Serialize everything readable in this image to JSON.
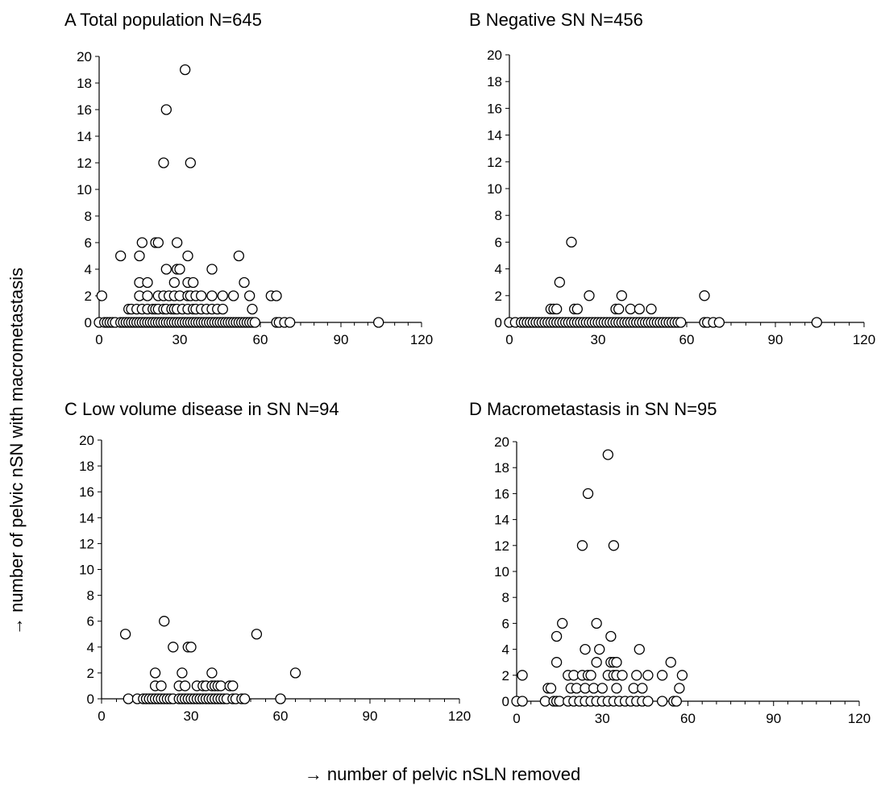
{
  "ylabel": "→ number of pelvic nSN with macrometastasis",
  "xlabel": "→ number of pelvic nSLN removed",
  "chart_data": [
    {
      "type": "scatter",
      "title": "A Total population N=645",
      "xlim": [
        0,
        120
      ],
      "ylim": [
        0,
        20
      ],
      "xticks": [
        "0",
        "30",
        "60",
        "90",
        "120"
      ],
      "yticks": [
        "0",
        "2",
        "4",
        "6",
        "8",
        "10",
        "12",
        "14",
        "16",
        "18",
        "20"
      ],
      "points": [
        [
          0,
          0
        ],
        [
          2,
          0
        ],
        [
          3,
          0
        ],
        [
          4,
          0
        ],
        [
          5,
          0
        ],
        [
          6,
          0
        ],
        [
          8,
          0
        ],
        [
          9,
          0
        ],
        [
          10,
          0
        ],
        [
          11,
          0
        ],
        [
          12,
          0
        ],
        [
          13,
          0
        ],
        [
          14,
          0
        ],
        [
          15,
          0
        ],
        [
          16,
          0
        ],
        [
          17,
          0
        ],
        [
          18,
          0
        ],
        [
          19,
          0
        ],
        [
          20,
          0
        ],
        [
          21,
          0
        ],
        [
          22,
          0
        ],
        [
          23,
          0
        ],
        [
          24,
          0
        ],
        [
          25,
          0
        ],
        [
          26,
          0
        ],
        [
          27,
          0
        ],
        [
          28,
          0
        ],
        [
          29,
          0
        ],
        [
          30,
          0
        ],
        [
          31,
          0
        ],
        [
          32,
          0
        ],
        [
          33,
          0
        ],
        [
          34,
          0
        ],
        [
          35,
          0
        ],
        [
          36,
          0
        ],
        [
          37,
          0
        ],
        [
          38,
          0
        ],
        [
          39,
          0
        ],
        [
          40,
          0
        ],
        [
          41,
          0
        ],
        [
          42,
          0
        ],
        [
          43,
          0
        ],
        [
          44,
          0
        ],
        [
          45,
          0
        ],
        [
          46,
          0
        ],
        [
          47,
          0
        ],
        [
          48,
          0
        ],
        [
          49,
          0
        ],
        [
          50,
          0
        ],
        [
          51,
          0
        ],
        [
          52,
          0
        ],
        [
          53,
          0
        ],
        [
          54,
          0
        ],
        [
          55,
          0
        ],
        [
          56,
          0
        ],
        [
          57,
          0
        ],
        [
          58,
          0
        ],
        [
          66,
          0
        ],
        [
          67,
          0
        ],
        [
          69,
          0
        ],
        [
          71,
          0
        ],
        [
          104,
          0
        ],
        [
          11,
          1
        ],
        [
          12,
          1
        ],
        [
          14,
          1
        ],
        [
          16,
          1
        ],
        [
          18,
          1
        ],
        [
          20,
          1
        ],
        [
          21,
          1
        ],
        [
          22,
          1
        ],
        [
          24,
          1
        ],
        [
          25,
          1
        ],
        [
          27,
          1
        ],
        [
          28,
          1
        ],
        [
          29,
          1
        ],
        [
          31,
          1
        ],
        [
          33,
          1
        ],
        [
          35,
          1
        ],
        [
          36,
          1
        ],
        [
          38,
          1
        ],
        [
          40,
          1
        ],
        [
          42,
          1
        ],
        [
          44,
          1
        ],
        [
          46,
          1
        ],
        [
          57,
          1
        ],
        [
          1,
          2
        ],
        [
          15,
          2
        ],
        [
          18,
          2
        ],
        [
          22,
          2
        ],
        [
          24,
          2
        ],
        [
          26,
          2
        ],
        [
          28,
          2
        ],
        [
          30,
          2
        ],
        [
          33,
          2
        ],
        [
          34,
          2
        ],
        [
          36,
          2
        ],
        [
          38,
          2
        ],
        [
          42,
          2
        ],
        [
          46,
          2
        ],
        [
          50,
          2
        ],
        [
          56,
          2
        ],
        [
          64,
          2
        ],
        [
          66,
          2
        ],
        [
          15,
          3
        ],
        [
          18,
          3
        ],
        [
          28,
          3
        ],
        [
          33,
          3
        ],
        [
          35,
          3
        ],
        [
          54,
          3
        ],
        [
          25,
          4
        ],
        [
          29,
          4
        ],
        [
          30,
          4
        ],
        [
          42,
          4
        ],
        [
          8,
          5
        ],
        [
          15,
          5
        ],
        [
          33,
          5
        ],
        [
          52,
          5
        ],
        [
          16,
          6
        ],
        [
          21,
          6
        ],
        [
          22,
          6
        ],
        [
          29,
          6
        ],
        [
          24,
          12
        ],
        [
          34,
          12
        ],
        [
          25,
          16
        ],
        [
          32,
          19
        ]
      ]
    },
    {
      "type": "scatter",
      "title": "B Negative SN N=456",
      "xlim": [
        0,
        120
      ],
      "ylim": [
        0,
        20
      ],
      "xticks": [
        "0",
        "30",
        "60",
        "90",
        "120"
      ],
      "yticks": [
        "0",
        "2",
        "4",
        "6",
        "8",
        "10",
        "12",
        "14",
        "16",
        "18",
        "20"
      ],
      "points": [
        [
          0,
          0
        ],
        [
          2,
          0
        ],
        [
          4,
          0
        ],
        [
          5,
          0
        ],
        [
          6,
          0
        ],
        [
          7,
          0
        ],
        [
          8,
          0
        ],
        [
          9,
          0
        ],
        [
          10,
          0
        ],
        [
          11,
          0
        ],
        [
          12,
          0
        ],
        [
          13,
          0
        ],
        [
          14,
          0
        ],
        [
          15,
          0
        ],
        [
          16,
          0
        ],
        [
          17,
          0
        ],
        [
          18,
          0
        ],
        [
          19,
          0
        ],
        [
          20,
          0
        ],
        [
          21,
          0
        ],
        [
          22,
          0
        ],
        [
          23,
          0
        ],
        [
          24,
          0
        ],
        [
          25,
          0
        ],
        [
          26,
          0
        ],
        [
          27,
          0
        ],
        [
          28,
          0
        ],
        [
          29,
          0
        ],
        [
          30,
          0
        ],
        [
          31,
          0
        ],
        [
          32,
          0
        ],
        [
          33,
          0
        ],
        [
          34,
          0
        ],
        [
          35,
          0
        ],
        [
          36,
          0
        ],
        [
          37,
          0
        ],
        [
          38,
          0
        ],
        [
          39,
          0
        ],
        [
          40,
          0
        ],
        [
          41,
          0
        ],
        [
          42,
          0
        ],
        [
          43,
          0
        ],
        [
          44,
          0
        ],
        [
          45,
          0
        ],
        [
          46,
          0
        ],
        [
          47,
          0
        ],
        [
          48,
          0
        ],
        [
          49,
          0
        ],
        [
          50,
          0
        ],
        [
          51,
          0
        ],
        [
          52,
          0
        ],
        [
          53,
          0
        ],
        [
          54,
          0
        ],
        [
          55,
          0
        ],
        [
          56,
          0
        ],
        [
          57,
          0
        ],
        [
          58,
          0
        ],
        [
          66,
          0
        ],
        [
          67,
          0
        ],
        [
          69,
          0
        ],
        [
          71,
          0
        ],
        [
          104,
          0
        ],
        [
          14,
          1
        ],
        [
          15,
          1
        ],
        [
          16,
          1
        ],
        [
          22,
          1
        ],
        [
          23,
          1
        ],
        [
          36,
          1
        ],
        [
          37,
          1
        ],
        [
          41,
          1
        ],
        [
          44,
          1
        ],
        [
          48,
          1
        ],
        [
          27,
          2
        ],
        [
          38,
          2
        ],
        [
          66,
          2
        ],
        [
          17,
          3
        ],
        [
          21,
          6
        ]
      ]
    },
    {
      "type": "scatter",
      "title": "C Low volume disease in SN N=94",
      "xlim": [
        0,
        120
      ],
      "ylim": [
        0,
        20
      ],
      "xticks": [
        "0",
        "30",
        "60",
        "90",
        "120"
      ],
      "yticks": [
        "0",
        "2",
        "4",
        "6",
        "8",
        "10",
        "12",
        "14",
        "16",
        "18",
        "20"
      ],
      "points": [
        [
          9,
          0
        ],
        [
          12,
          0
        ],
        [
          14,
          0
        ],
        [
          15,
          0
        ],
        [
          16,
          0
        ],
        [
          17,
          0
        ],
        [
          18,
          0
        ],
        [
          19,
          0
        ],
        [
          20,
          0
        ],
        [
          21,
          0
        ],
        [
          22,
          0
        ],
        [
          23,
          0
        ],
        [
          24,
          0
        ],
        [
          26,
          0
        ],
        [
          27,
          0
        ],
        [
          28,
          0
        ],
        [
          29,
          0
        ],
        [
          30,
          0
        ],
        [
          31,
          0
        ],
        [
          32,
          0
        ],
        [
          33,
          0
        ],
        [
          34,
          0
        ],
        [
          35,
          0
        ],
        [
          36,
          0
        ],
        [
          37,
          0
        ],
        [
          38,
          0
        ],
        [
          39,
          0
        ],
        [
          40,
          0
        ],
        [
          41,
          0
        ],
        [
          42,
          0
        ],
        [
          44,
          0
        ],
        [
          45,
          0
        ],
        [
          47,
          0
        ],
        [
          48,
          0
        ],
        [
          60,
          0
        ],
        [
          18,
          1
        ],
        [
          20,
          1
        ],
        [
          26,
          1
        ],
        [
          28,
          1
        ],
        [
          32,
          1
        ],
        [
          34,
          1
        ],
        [
          35,
          1
        ],
        [
          37,
          1
        ],
        [
          38,
          1
        ],
        [
          39,
          1
        ],
        [
          40,
          1
        ],
        [
          43,
          1
        ],
        [
          44,
          1
        ],
        [
          18,
          2
        ],
        [
          27,
          2
        ],
        [
          37,
          2
        ],
        [
          65,
          2
        ],
        [
          24,
          4
        ],
        [
          29,
          4
        ],
        [
          30,
          4
        ],
        [
          8,
          5
        ],
        [
          52,
          5
        ],
        [
          21,
          6
        ]
      ]
    },
    {
      "type": "scatter",
      "title": "D Macrometastasis in SN N=95",
      "xlim": [
        0,
        120
      ],
      "ylim": [
        0,
        20
      ],
      "xticks": [
        "0",
        "30",
        "60",
        "90",
        "120"
      ],
      "yticks": [
        "0",
        "2",
        "4",
        "6",
        "8",
        "10",
        "12",
        "14",
        "16",
        "18",
        "20"
      ],
      "points": [
        [
          0,
          0
        ],
        [
          2,
          0
        ],
        [
          10,
          0
        ],
        [
          13,
          0
        ],
        [
          14,
          0
        ],
        [
          15,
          0
        ],
        [
          18,
          0
        ],
        [
          20,
          0
        ],
        [
          22,
          0
        ],
        [
          24,
          0
        ],
        [
          26,
          0
        ],
        [
          28,
          0
        ],
        [
          30,
          0
        ],
        [
          32,
          0
        ],
        [
          34,
          0
        ],
        [
          36,
          0
        ],
        [
          38,
          0
        ],
        [
          40,
          0
        ],
        [
          42,
          0
        ],
        [
          44,
          0
        ],
        [
          46,
          0
        ],
        [
          51,
          0
        ],
        [
          55,
          0
        ],
        [
          56,
          0
        ],
        [
          11,
          1
        ],
        [
          12,
          1
        ],
        [
          19,
          1
        ],
        [
          21,
          1
        ],
        [
          24,
          1
        ],
        [
          27,
          1
        ],
        [
          30,
          1
        ],
        [
          35,
          1
        ],
        [
          41,
          1
        ],
        [
          44,
          1
        ],
        [
          57,
          1
        ],
        [
          2,
          2
        ],
        [
          18,
          2
        ],
        [
          20,
          2
        ],
        [
          23,
          2
        ],
        [
          25,
          2
        ],
        [
          26,
          2
        ],
        [
          32,
          2
        ],
        [
          34,
          2
        ],
        [
          35,
          2
        ],
        [
          37,
          2
        ],
        [
          42,
          2
        ],
        [
          46,
          2
        ],
        [
          51,
          2
        ],
        [
          58,
          2
        ],
        [
          14,
          3
        ],
        [
          28,
          3
        ],
        [
          33,
          3
        ],
        [
          34,
          3
        ],
        [
          35,
          3
        ],
        [
          54,
          3
        ],
        [
          24,
          4
        ],
        [
          29,
          4
        ],
        [
          43,
          4
        ],
        [
          14,
          5
        ],
        [
          33,
          5
        ],
        [
          16,
          6
        ],
        [
          28,
          6
        ],
        [
          23,
          12
        ],
        [
          34,
          12
        ],
        [
          25,
          16
        ],
        [
          32,
          19
        ]
      ]
    }
  ]
}
